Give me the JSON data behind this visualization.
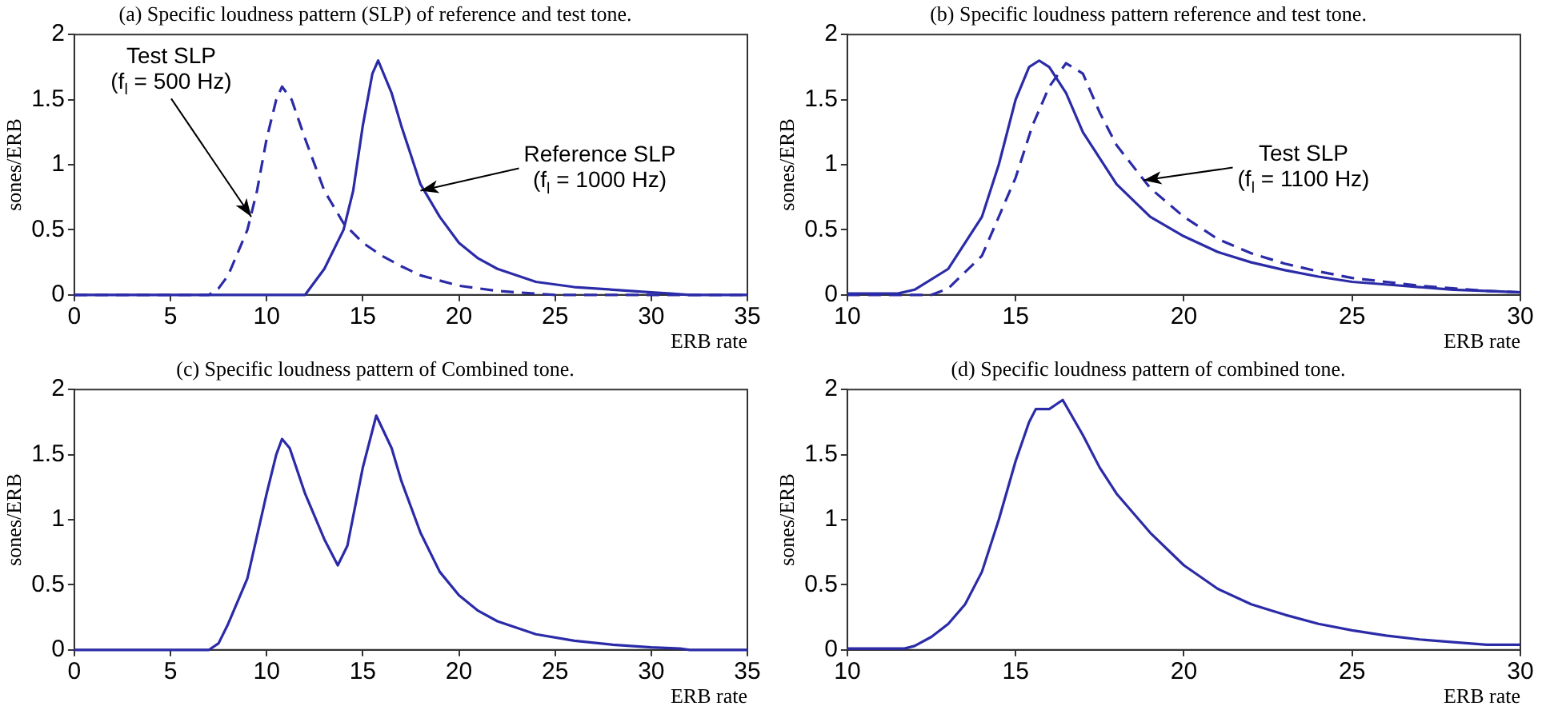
{
  "chart_data": [
    {
      "type": "line",
      "title": "(a) Specific loudness pattern (SLP) of reference and test tone.",
      "xlabel": "ERB rate",
      "ylabel": "sones/ERB",
      "xlim": [
        0,
        35
      ],
      "xticks": [
        0,
        5,
        10,
        15,
        20,
        25,
        30,
        35
      ],
      "ylim": [
        0,
        2
      ],
      "yticks": [
        0,
        0.5,
        1,
        1.5,
        2
      ],
      "marker": "none",
      "series": [
        {
          "color": "#2b2ba8",
          "line_style": "solid",
          "x": [
            0,
            12,
            13,
            14,
            14.5,
            15,
            15.5,
            15.8,
            16.5,
            17,
            18,
            19,
            20,
            21,
            22,
            24,
            26,
            28,
            30,
            31,
            32,
            35
          ],
          "values": [
            0,
            0,
            0.2,
            0.5,
            0.8,
            1.3,
            1.7,
            1.8,
            1.55,
            1.3,
            0.85,
            0.6,
            0.4,
            0.28,
            0.2,
            0.1,
            0.06,
            0.04,
            0.02,
            0.01,
            0,
            0
          ]
        },
        {
          "color": "#2b2ba8",
          "line_style": "dashed",
          "x": [
            0,
            7,
            7.5,
            8,
            9,
            9.5,
            10,
            10.5,
            10.8,
            11.3,
            12,
            13,
            14,
            15,
            16,
            17,
            18,
            20,
            22,
            24,
            25,
            35
          ],
          "values": [
            0,
            0,
            0.05,
            0.15,
            0.5,
            0.8,
            1.2,
            1.5,
            1.6,
            1.5,
            1.2,
            0.8,
            0.55,
            0.4,
            0.3,
            0.22,
            0.15,
            0.07,
            0.03,
            0.01,
            0,
            0
          ]
        }
      ],
      "annotations": [
        {
          "text": "Test SLP\n(f$_{l}$ = 500 Hz)",
          "x": 9.2,
          "y": 0.6
        },
        {
          "text": "Reference SLP\n(f$_{l}$ = 1000 Hz)",
          "x": 18,
          "y": 0.8
        }
      ]
    },
    {
      "type": "line",
      "title": "(b) Specific loudness pattern reference and test tone.",
      "xlabel": "ERB rate",
      "ylabel": "sones/ERB",
      "xlim": [
        10,
        30
      ],
      "xticks": [
        10,
        15,
        20,
        25,
        30
      ],
      "ylim": [
        0,
        2
      ],
      "yticks": [
        0,
        0.5,
        1,
        1.5,
        2
      ],
      "marker": "none",
      "series": [
        {
          "color": "#2b2ba8",
          "line_style": "solid",
          "x": [
            10,
            11.5,
            12,
            13,
            14,
            14.5,
            15,
            15.4,
            15.7,
            16,
            16.5,
            17,
            17.5,
            18,
            19,
            20,
            21,
            22,
            23,
            24,
            25,
            26,
            27,
            28,
            29,
            30
          ],
          "values": [
            0.01,
            0.01,
            0.04,
            0.2,
            0.6,
            1.0,
            1.5,
            1.75,
            1.8,
            1.75,
            1.55,
            1.25,
            1.05,
            0.85,
            0.6,
            0.45,
            0.33,
            0.25,
            0.19,
            0.14,
            0.1,
            0.08,
            0.06,
            0.04,
            0.03,
            0.02
          ]
        },
        {
          "color": "#2b2ba8",
          "line_style": "dashed",
          "x": [
            10,
            12.5,
            13,
            14,
            15,
            15.5,
            16,
            16.5,
            17,
            17.5,
            18,
            19,
            20,
            21,
            22,
            23,
            24,
            25,
            26,
            27,
            28,
            29,
            30
          ],
          "values": [
            0,
            0,
            0.05,
            0.3,
            0.9,
            1.3,
            1.6,
            1.78,
            1.7,
            1.4,
            1.15,
            0.82,
            0.6,
            0.43,
            0.32,
            0.24,
            0.18,
            0.13,
            0.1,
            0.07,
            0.05,
            0.03,
            0.02
          ]
        }
      ],
      "annotations": [
        {
          "text": "Test SLP\n(f$_{l}$ = 1100 Hz)",
          "x": 18.8,
          "y": 0.88
        }
      ]
    },
    {
      "type": "line",
      "title": "(c) Specific loudness pattern of Combined tone.",
      "xlabel": "ERB rate",
      "ylabel": "sones/ERB",
      "xlim": [
        0,
        35
      ],
      "xticks": [
        0,
        5,
        10,
        15,
        20,
        25,
        30,
        35
      ],
      "ylim": [
        0,
        2
      ],
      "yticks": [
        0,
        0.5,
        1,
        1.5,
        2
      ],
      "marker": "none",
      "series": [
        {
          "color": "#2b2ba8",
          "line_style": "solid",
          "x": [
            0,
            7,
            7.5,
            8,
            9,
            10,
            10.5,
            10.8,
            11.2,
            12,
            13,
            13.7,
            14.2,
            15,
            15.7,
            16.5,
            17,
            18,
            19,
            20,
            21,
            22,
            24,
            26,
            28,
            30,
            31.5,
            32,
            35
          ],
          "values": [
            0,
            0,
            0.05,
            0.2,
            0.55,
            1.2,
            1.5,
            1.62,
            1.55,
            1.2,
            0.85,
            0.65,
            0.8,
            1.4,
            1.8,
            1.55,
            1.3,
            0.9,
            0.6,
            0.42,
            0.3,
            0.22,
            0.12,
            0.07,
            0.04,
            0.02,
            0.01,
            0,
            0
          ]
        }
      ]
    },
    {
      "type": "line",
      "title": "(d) Specific loudness pattern of combined tone.",
      "xlabel": "ERB rate",
      "ylabel": "sones/ERB",
      "xlim": [
        10,
        30
      ],
      "xticks": [
        10,
        15,
        20,
        25,
        30
      ],
      "ylim": [
        0,
        2
      ],
      "yticks": [
        0,
        0.5,
        1,
        1.5,
        2
      ],
      "marker": "none",
      "series": [
        {
          "color": "#2b2ba8",
          "line_style": "solid",
          "x": [
            10,
            11.7,
            12,
            12.5,
            13,
            13.5,
            14,
            14.5,
            15,
            15.4,
            15.6,
            16,
            16.4,
            17,
            17.5,
            18,
            19,
            20,
            21,
            22,
            23,
            24,
            25,
            26,
            27,
            28,
            29,
            30
          ],
          "values": [
            0.01,
            0.01,
            0.03,
            0.1,
            0.2,
            0.35,
            0.6,
            1.0,
            1.45,
            1.75,
            1.85,
            1.85,
            1.92,
            1.65,
            1.4,
            1.2,
            0.9,
            0.65,
            0.47,
            0.35,
            0.27,
            0.2,
            0.15,
            0.11,
            0.08,
            0.06,
            0.04,
            0.04
          ]
        }
      ]
    }
  ]
}
